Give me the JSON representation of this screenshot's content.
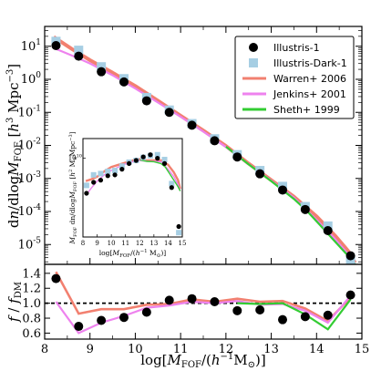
{
  "chart_data": [
    {
      "type": "scatter",
      "panel": "main",
      "ylabel": "dn/dlog M_FOF [h^3 Mpc^-3]",
      "yscale": "log",
      "xlim": [
        8,
        15
      ],
      "ylim_exp": [
        -5.6,
        1.6
      ],
      "x_ticks": [
        "8",
        "9",
        "10",
        "11",
        "12",
        "13",
        "14",
        "15"
      ],
      "y_ticks": [
        {
          "base": "10",
          "exp": "1",
          "value": 1
        },
        {
          "base": "10",
          "exp": "0",
          "value": 0
        },
        {
          "base": "10",
          "exp": "-1",
          "value": -1
        },
        {
          "base": "10",
          "exp": "-2",
          "value": -2
        },
        {
          "base": "10",
          "exp": "-3",
          "value": -3
        },
        {
          "base": "10",
          "exp": "-4",
          "value": -4
        },
        {
          "base": "10",
          "exp": "-5",
          "value": -5
        }
      ],
      "legend_position": "upper-right",
      "series": [
        {
          "name": "Illustris-1",
          "marker": "circle",
          "color": "#000000",
          "x": [
            8.25,
            8.75,
            9.25,
            9.75,
            10.25,
            10.75,
            11.25,
            11.75,
            12.25,
            12.75,
            13.25,
            13.75,
            14.25,
            14.75
          ],
          "log_y": [
            1.02,
            0.7,
            0.23,
            -0.08,
            -0.65,
            -1.0,
            -1.39,
            -1.86,
            -2.35,
            -2.86,
            -3.35,
            -3.94,
            -4.58,
            -5.34
          ]
        },
        {
          "name": "Illustris-Dark-1",
          "marker": "square",
          "color": "#a6cee3",
          "x": [
            8.25,
            8.75,
            9.25,
            9.75,
            10.25,
            10.75,
            11.25,
            11.75,
            12.25,
            12.75,
            13.25,
            13.75,
            14.25,
            14.75
          ],
          "log_y": [
            1.15,
            0.88,
            0.38,
            0.02,
            -0.55,
            -0.93,
            -1.34,
            -1.8,
            -2.28,
            -2.76,
            -3.24,
            -3.85,
            -4.44,
            -5.45
          ]
        },
        {
          "name": "Warren+ 2006",
          "line": true,
          "color": "#f28070",
          "x": [
            8.2,
            8.6,
            9.0,
            9.5,
            10.0,
            10.5,
            11.0,
            11.5,
            12.0,
            12.5,
            13.0,
            13.5,
            14.0,
            14.4,
            14.7,
            14.85
          ],
          "log_y": [
            1.28,
            0.92,
            0.58,
            0.2,
            -0.2,
            -0.65,
            -1.1,
            -1.55,
            -2.02,
            -2.55,
            -3.05,
            -3.55,
            -4.15,
            -4.72,
            -5.2,
            -5.55
          ]
        },
        {
          "name": "Jenkins+ 2001",
          "line": true,
          "color": "#ee82ee",
          "x": [
            8.2,
            8.6,
            9.0,
            9.5,
            10.0,
            10.5,
            11.0,
            11.5,
            12.0,
            12.5,
            13.0,
            13.5,
            14.0,
            14.4,
            14.7,
            14.85
          ],
          "log_y": [
            0.95,
            0.72,
            0.48,
            0.12,
            -0.28,
            -0.7,
            -1.13,
            -1.58,
            -2.05,
            -2.57,
            -3.07,
            -3.58,
            -4.25,
            -4.82,
            -5.3,
            -5.6
          ]
        },
        {
          "name": "Sheth+ 1999",
          "line": true,
          "color": "#33cc33",
          "x": [
            12.0,
            12.5,
            13.0,
            13.5,
            13.8,
            14.1,
            14.4,
            14.7,
            14.85
          ],
          "log_y": [
            -2.04,
            -2.57,
            -3.08,
            -3.62,
            -4.0,
            -4.45,
            -4.9,
            -5.35,
            -5.6
          ]
        }
      ]
    },
    {
      "type": "scatter",
      "panel": "inset",
      "xlabel": "log[M_FOF/(h^-1 M_sun)]",
      "ylabel": "M_FOF dn/dlog M_FOF [h^2 M_sun Mpc^-3]",
      "xlim": [
        8,
        15
      ],
      "x_ticks": [
        "8",
        "9",
        "10",
        "11",
        "12",
        "13",
        "14",
        "15"
      ],
      "y_tick_label": "10^10",
      "series": [
        {
          "name": "Illustris-1",
          "x": [
            8.25,
            8.75,
            9.25,
            9.75,
            10.25,
            10.75,
            11.25,
            11.75,
            12.25,
            12.75,
            13.25,
            13.75,
            14.25,
            14.75
          ],
          "log_y": [
            9.2,
            9.45,
            9.5,
            9.6,
            9.62,
            9.75,
            9.88,
            9.95,
            10.03,
            10.08,
            10.0,
            9.88,
            9.33,
            8.44
          ]
        },
        {
          "name": "Illustris-Dark-1",
          "x": [
            8.25,
            8.75,
            9.25,
            9.75,
            10.25,
            10.75,
            11.25,
            11.75,
            12.25,
            12.75,
            13.25,
            13.75,
            14.25,
            14.75
          ],
          "log_y": [
            9.38,
            9.62,
            9.65,
            9.7,
            9.72,
            9.82,
            9.91,
            9.95,
            10.02,
            10.06,
            10.08,
            9.97,
            9.42,
            8.3
          ]
        }
      ]
    },
    {
      "type": "line",
      "panel": "ratio",
      "xlabel": "log[M_FOF/(h^-1 M_sun)]",
      "ylabel": "f / f_DM",
      "xlim": [
        8,
        15
      ],
      "ylim": [
        0.5,
        1.5
      ],
      "x_ticks": [
        "8",
        "9",
        "10",
        "11",
        "12",
        "13",
        "14",
        "15"
      ],
      "y_ticks": [
        "0.6",
        "0.8",
        "1.0",
        "1.2",
        "1.4"
      ],
      "reference_line": 1.0,
      "series": [
        {
          "name": "Illustris-1",
          "x": [
            8.25,
            8.75,
            9.25,
            9.75,
            10.25,
            10.75,
            11.25,
            11.75,
            12.25,
            12.75,
            13.25,
            13.75,
            14.25,
            14.75
          ],
          "y": [
            1.33,
            0.69,
            0.77,
            0.81,
            0.88,
            1.04,
            1.06,
            1.02,
            0.9,
            0.91,
            0.78,
            0.82,
            0.84,
            1.11
          ]
        },
        {
          "name": "Warren+ 2006",
          "x": [
            8.25,
            8.75,
            9.25,
            9.75,
            10.25,
            10.75,
            11.25,
            11.75,
            12.25,
            12.75,
            13.25,
            13.75,
            14.25,
            14.75
          ],
          "y": [
            1.42,
            0.86,
            0.92,
            0.92,
            0.98,
            0.99,
            1.05,
            1.02,
            1.06,
            1.02,
            1.03,
            0.93,
            0.76,
            1.08
          ]
        },
        {
          "name": "Jenkins+ 2001",
          "x": [
            8.25,
            8.75,
            9.25,
            9.75,
            10.25,
            10.75,
            11.25,
            11.75,
            12.25,
            12.75,
            13.25,
            13.75,
            14.25,
            14.75
          ],
          "y": [
            1.02,
            0.6,
            0.74,
            0.83,
            0.94,
            0.97,
            1.02,
            1.0,
            1.03,
            0.98,
            0.99,
            0.9,
            0.74,
            1.1
          ]
        },
        {
          "name": "Sheth+ 1999",
          "x": [
            12.25,
            12.75,
            13.25,
            13.75,
            14.25,
            14.75
          ],
          "y": [
            1.0,
            0.99,
            1.0,
            0.85,
            0.65,
            1.05
          ]
        }
      ]
    }
  ]
}
